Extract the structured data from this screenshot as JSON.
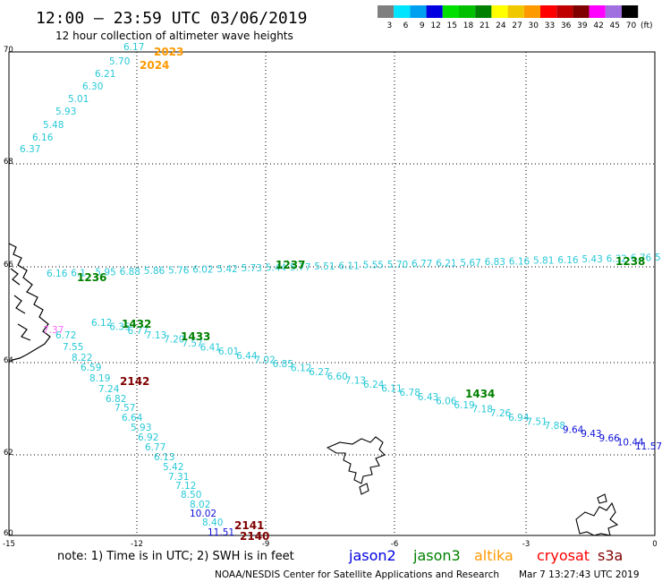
{
  "header": {
    "title": "12:00 – 23:59 UTC 03/06/2019",
    "subtitle": "12 hour collection of altimeter wave heights"
  },
  "legend": {
    "unit_label": "(ft)",
    "bins": [
      {
        "label": "3",
        "color": "#7f7f7f"
      },
      {
        "label": "6",
        "color": "#00e5ff"
      },
      {
        "label": "9",
        "color": "#00a0f0"
      },
      {
        "label": "12",
        "color": "#0000e0"
      },
      {
        "label": "15",
        "color": "#00e000"
      },
      {
        "label": "18",
        "color": "#00c000"
      },
      {
        "label": "21",
        "color": "#008000"
      },
      {
        "label": "24",
        "color": "#ffff00"
      },
      {
        "label": "27",
        "color": "#f0c800"
      },
      {
        "label": "30",
        "color": "#ff9900"
      },
      {
        "label": "33",
        "color": "#ff0000"
      },
      {
        "label": "36",
        "color": "#c00000"
      },
      {
        "label": "39",
        "color": "#800000"
      },
      {
        "label": "42",
        "color": "#ff00ff"
      },
      {
        "label": "45",
        "color": "#a070e0"
      },
      {
        "label": "70",
        "color": "#000000"
      }
    ]
  },
  "map": {
    "lon_ticks": [
      "-15",
      "-12",
      "-9",
      "-6",
      "-3",
      "0"
    ],
    "lat_ticks": [
      "70",
      "68",
      "66",
      "64",
      "62",
      "60"
    ],
    "tracks": [
      {
        "name": "track-a",
        "points": [
          {
            "v": "6.37",
            "c": "#27c9d8"
          },
          {
            "v": "6.16",
            "c": "#27c9d8"
          },
          {
            "v": "5.48",
            "c": "#27c9d8"
          },
          {
            "v": "5.93",
            "c": "#27c9d8"
          },
          {
            "v": "5.01",
            "c": "#27c9d8"
          },
          {
            "v": "6.30",
            "c": "#27c9d8"
          },
          {
            "v": "6.21",
            "c": "#27c9d8"
          },
          {
            "v": "5.70",
            "c": "#27c9d8"
          },
          {
            "v": "6.17",
            "c": "#27c9d8"
          }
        ]
      },
      {
        "name": "track-b",
        "points": [
          {
            "v": "6.16",
            "c": "#27c9d8"
          },
          {
            "v": "6.1",
            "c": "#27c9d8"
          },
          {
            "v": "5.95",
            "c": "#27c9d8"
          },
          {
            "v": "6.88",
            "c": "#27c9d8"
          },
          {
            "v": "5.86",
            "c": "#27c9d8"
          },
          {
            "v": "5.76",
            "c": "#27c9d8"
          },
          {
            "v": "6.02",
            "c": "#27c9d8"
          },
          {
            "v": "5.42",
            "c": "#27c9d8"
          },
          {
            "v": "5.73",
            "c": "#27c9d8"
          },
          {
            "v": "5.44",
            "c": "#27c9d8"
          },
          {
            "v": "5.77",
            "c": "#27c9d8"
          },
          {
            "v": "5.51",
            "c": "#27c9d8"
          },
          {
            "v": "6.11",
            "c": "#27c9d8"
          },
          {
            "v": "5.55",
            "c": "#27c9d8"
          },
          {
            "v": "5.70",
            "c": "#27c9d8"
          },
          {
            "v": "6.77",
            "c": "#27c9d8"
          },
          {
            "v": "6.21",
            "c": "#27c9d8"
          },
          {
            "v": "5.67",
            "c": "#27c9d8"
          },
          {
            "v": "6.83",
            "c": "#27c9d8"
          },
          {
            "v": "6.16",
            "c": "#27c9d8"
          },
          {
            "v": "5.81",
            "c": "#27c9d8"
          },
          {
            "v": "6.16",
            "c": "#27c9d8"
          },
          {
            "v": "5.43",
            "c": "#27c9d8"
          },
          {
            "v": "6.32",
            "c": "#27c9d8"
          },
          {
            "v": "6.76",
            "c": "#27c9d8"
          },
          {
            "v": "5.56",
            "c": "#27c9d8"
          }
        ]
      },
      {
        "name": "track-c",
        "points": [
          {
            "v": "6.12",
            "c": "#27c9d8"
          },
          {
            "v": "6.35",
            "c": "#27c9d8"
          },
          {
            "v": "6.77",
            "c": "#27c9d8"
          },
          {
            "v": "7.13",
            "c": "#27c9d8"
          },
          {
            "v": "7.20",
            "c": "#27c9d8"
          },
          {
            "v": "7.57",
            "c": "#27c9d8"
          },
          {
            "v": "6.41",
            "c": "#27c9d8"
          },
          {
            "v": "6.01",
            "c": "#27c9d8"
          },
          {
            "v": "6.44",
            "c": "#27c9d8"
          },
          {
            "v": "7.02",
            "c": "#27c9d8"
          },
          {
            "v": "6.85",
            "c": "#27c9d8"
          },
          {
            "v": "6.12",
            "c": "#27c9d8"
          },
          {
            "v": "6.27",
            "c": "#27c9d8"
          },
          {
            "v": "6.60",
            "c": "#27c9d8"
          },
          {
            "v": "7.13",
            "c": "#27c9d8"
          },
          {
            "v": "6.24",
            "c": "#27c9d8"
          },
          {
            "v": "6.11",
            "c": "#27c9d8"
          },
          {
            "v": "6.78",
            "c": "#27c9d8"
          },
          {
            "v": "6.43",
            "c": "#27c9d8"
          },
          {
            "v": "6.06",
            "c": "#27c9d8"
          },
          {
            "v": "6.19",
            "c": "#27c9d8"
          },
          {
            "v": "7.18",
            "c": "#27c9d8"
          },
          {
            "v": "7.26",
            "c": "#27c9d8"
          },
          {
            "v": "6.94",
            "c": "#27c9d8"
          },
          {
            "v": "7.51",
            "c": "#27c9d8"
          },
          {
            "v": "7.88",
            "c": "#27c9d8"
          },
          {
            "v": "9.64",
            "c": "#1010d8"
          },
          {
            "v": "9.43",
            "c": "#1010d8"
          },
          {
            "v": "9.66",
            "c": "#1010d8"
          },
          {
            "v": "10.44",
            "c": "#1010d8"
          },
          {
            "v": "11.57",
            "c": "#1010d8"
          }
        ]
      },
      {
        "name": "track-d",
        "points": [
          {
            "v": "6.72",
            "c": "#27c9d8"
          },
          {
            "v": "7.55",
            "c": "#27c9d8"
          },
          {
            "v": "8.22",
            "c": "#27c9d8"
          },
          {
            "v": "6.59",
            "c": "#27c9d8"
          },
          {
            "v": "8.19",
            "c": "#27c9d8"
          },
          {
            "v": "7.24",
            "c": "#27c9d8"
          },
          {
            "v": "6.82",
            "c": "#27c9d8"
          },
          {
            "v": "7.57",
            "c": "#27c9d8"
          },
          {
            "v": "6.64",
            "c": "#27c9d8"
          },
          {
            "v": "5.93",
            "c": "#27c9d8"
          },
          {
            "v": "6.92",
            "c": "#27c9d8"
          },
          {
            "v": "6.77",
            "c": "#27c9d8"
          },
          {
            "v": "6.13",
            "c": "#27c9d8"
          },
          {
            "v": "5.42",
            "c": "#27c9d8"
          },
          {
            "v": "7.31",
            "c": "#27c9d8"
          },
          {
            "v": "7.12",
            "c": "#27c9d8"
          },
          {
            "v": "8.50",
            "c": "#27c9d8"
          },
          {
            "v": "8.02",
            "c": "#27c9d8"
          },
          {
            "v": "10.02",
            "c": "#1010d8"
          },
          {
            "v": "8.40",
            "c": "#27c9d8"
          },
          {
            "v": "11.51",
            "c": "#1010d8"
          }
        ]
      }
    ],
    "pass_times": [
      {
        "label": "2023",
        "color": "#ff9900"
      },
      {
        "label": "2024",
        "color": "#ff9900"
      },
      {
        "label": "1236",
        "color": "#008000"
      },
      {
        "label": "1237",
        "color": "#008000"
      },
      {
        "label": "1238",
        "color": "#008000"
      },
      {
        "label": "1432",
        "color": "#008000"
      },
      {
        "label": "1433",
        "color": "#008000"
      },
      {
        "label": "1434",
        "color": "#008000"
      },
      {
        "label": "2142",
        "color": "#800000"
      },
      {
        "label": "2141",
        "color": "#800000"
      },
      {
        "label": "2140",
        "color": "#800000"
      }
    ],
    "misc_labels": [
      {
        "label": "7.37",
        "color": "#ff66ff"
      }
    ]
  },
  "footer": {
    "note": "note:  1) Time is in UTC;  2) SWH is in feet",
    "satellites": [
      {
        "name": "jason2",
        "color": "#0000e0"
      },
      {
        "name": "jason3",
        "color": "#008000"
      },
      {
        "name": "altika",
        "color": "#ff9900"
      },
      {
        "name": "cryosat",
        "color": "#ff0000"
      },
      {
        "name": "s3a",
        "color": "#800000"
      }
    ],
    "credit": "NOAA/NESDIS Center for Satellite Applications and Research",
    "timestamp": "Mar  7 13:27:43 UTC 2019"
  }
}
